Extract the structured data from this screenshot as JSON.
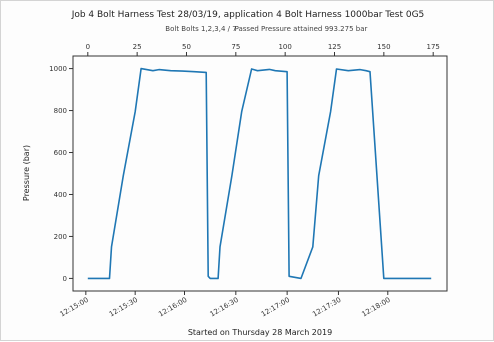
{
  "chart_data": {
    "type": "line",
    "title": "Job 4 Bolt Harness Test 28/03/19, application 4 Bolt Harness 1000bar Test 0G5",
    "subtitle_line1": "Bolt Bolts 1,2,3,4 / 7",
    "subtitle_line2": "Passed Pressure attained 993.275 bar",
    "xlabel": "Started on Thursday 28 March 2019",
    "ylabel": "Pressure (bar)",
    "ylim": [
      -60,
      1060
    ],
    "xlim": [
      -7.5,
      182
    ],
    "grid": false,
    "legend": "none",
    "line_color": "#1f77b4",
    "y_ticks": [
      0,
      200,
      400,
      600,
      800,
      1000
    ],
    "top_ticks": [
      0,
      25,
      50,
      75,
      100,
      125,
      150,
      175
    ],
    "bottom_ticks": [
      {
        "x": -1,
        "label": "12:15:00"
      },
      {
        "x": 24,
        "label": "12:15:30"
      },
      {
        "x": 49,
        "label": "12:16:00"
      },
      {
        "x": 75,
        "label": "12:16:30"
      },
      {
        "x": 101,
        "label": "12:17:00"
      },
      {
        "x": 127,
        "label": "12:17:30"
      },
      {
        "x": 152,
        "label": "12:18:00"
      }
    ],
    "series": [
      {
        "x": [
          0,
          11,
          12,
          18,
          24,
          27,
          33,
          36,
          42,
          48,
          54,
          60,
          61,
          62,
          66,
          67,
          73,
          78,
          83,
          86,
          92,
          95,
          101,
          102,
          108,
          114,
          117,
          123,
          126,
          132,
          138,
          141,
          143,
          150,
          154,
          174
        ],
        "y": [
          0,
          0,
          150,
          490,
          795,
          1000,
          990,
          995,
          990,
          988,
          985,
          982,
          10,
          0,
          0,
          150,
          490,
          795,
          998,
          990,
          996,
          990,
          985,
          10,
          0,
          150,
          490,
          795,
          998,
          990,
          995,
          990,
          985,
          0,
          0,
          0
        ]
      }
    ]
  }
}
